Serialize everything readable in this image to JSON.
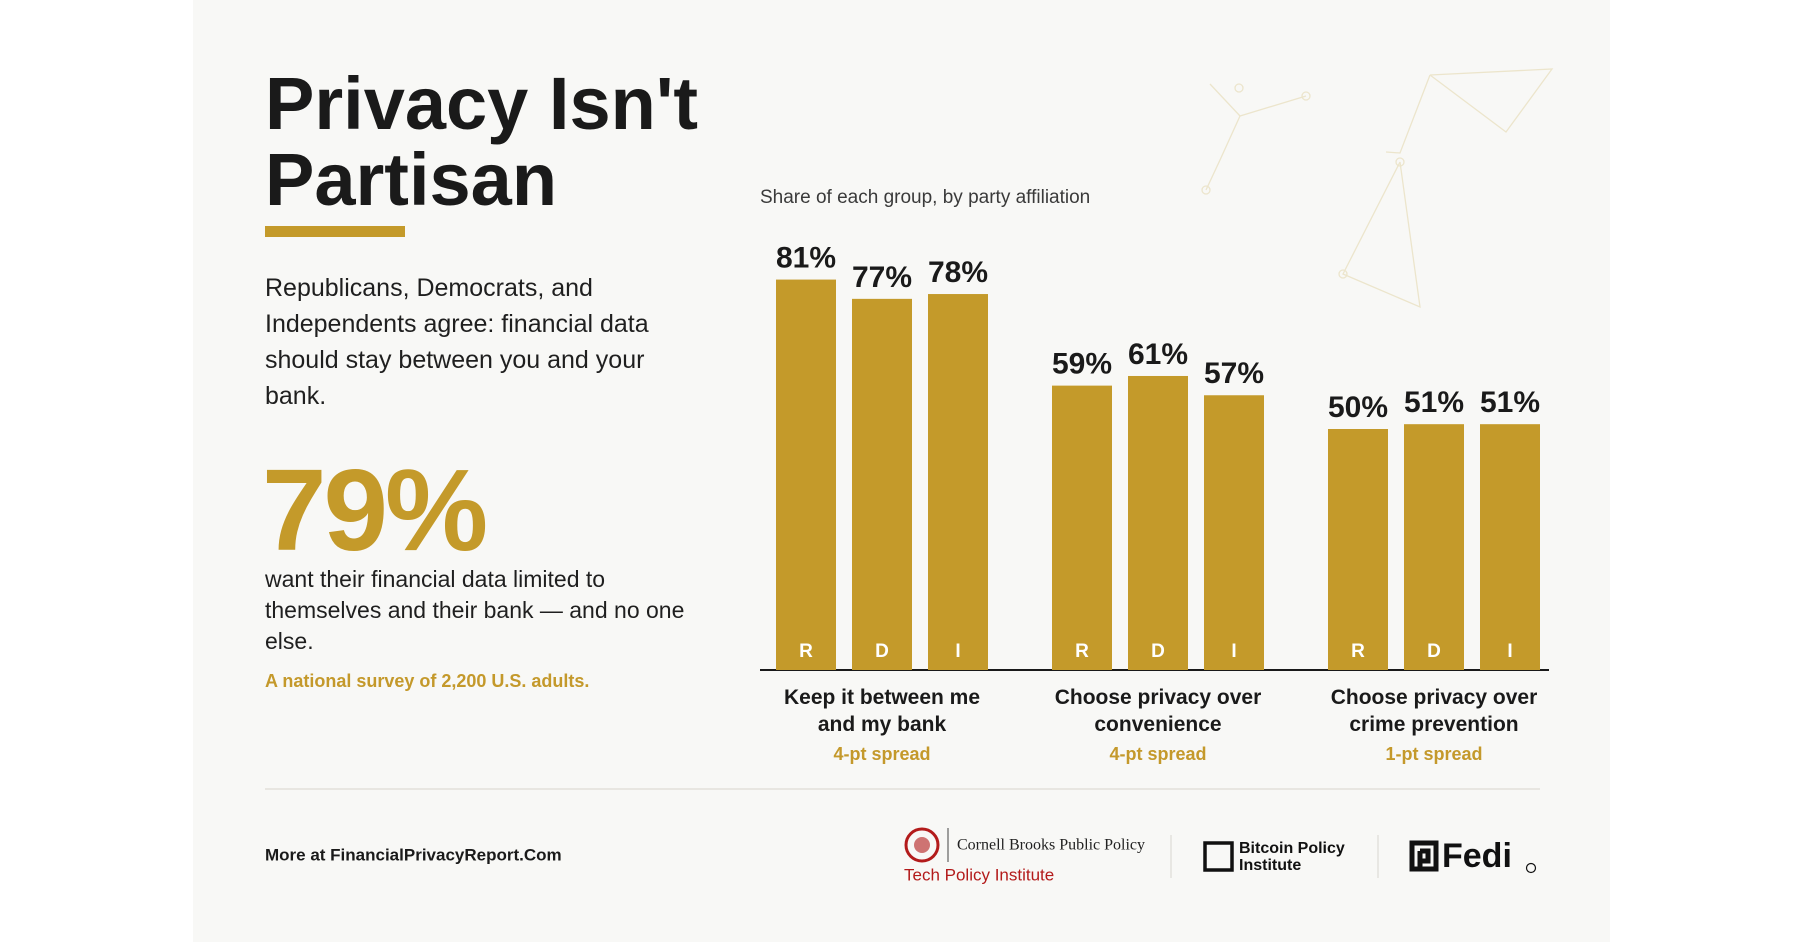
{
  "header": {
    "title": "Privacy Isn't Partisan",
    "intro": "Republicans, Democrats, and Independents agree: financial data should stay between you and your bank.",
    "stat_value": "79%",
    "stat_text": "want their financial data limited to themselves and their bank — and no one else.",
    "survey_note": "A national survey of 2,200 U.S. adults."
  },
  "chart_data": {
    "type": "bar",
    "subtitle": "Share of each group, by party affiliation",
    "categories": [
      "Keep it between me and my bank",
      "Choose privacy over convenience",
      "Choose privacy over crime prevention"
    ],
    "category_notes": [
      "4-pt spread",
      "4-pt spread",
      "1-pt spread"
    ],
    "series": [
      {
        "name": "R",
        "color": "#c49a2a",
        "values": [
          81,
          59,
          50
        ],
        "value_labels": [
          "81%",
          "59%",
          "50%"
        ]
      },
      {
        "name": "D",
        "color": "#c49a2a",
        "values": [
          77,
          61,
          51
        ],
        "value_labels": [
          "77%",
          "61%",
          "51%"
        ]
      },
      {
        "name": "I",
        "color": "#c49a2a",
        "values": [
          78,
          57,
          51
        ],
        "value_labels": [
          "78%",
          "57%",
          "51%"
        ]
      }
    ],
    "ylim": [
      0,
      100
    ]
  },
  "footer": {
    "link": "More at FinancialPrivacyReport.Com",
    "cornell": "Cornell Brooks Public Policy",
    "tech_policy": "Tech Policy Institute",
    "bitcoin_line1": "Bitcoin Policy",
    "bitcoin_line2": "Institute",
    "fedi": "Fedi"
  }
}
